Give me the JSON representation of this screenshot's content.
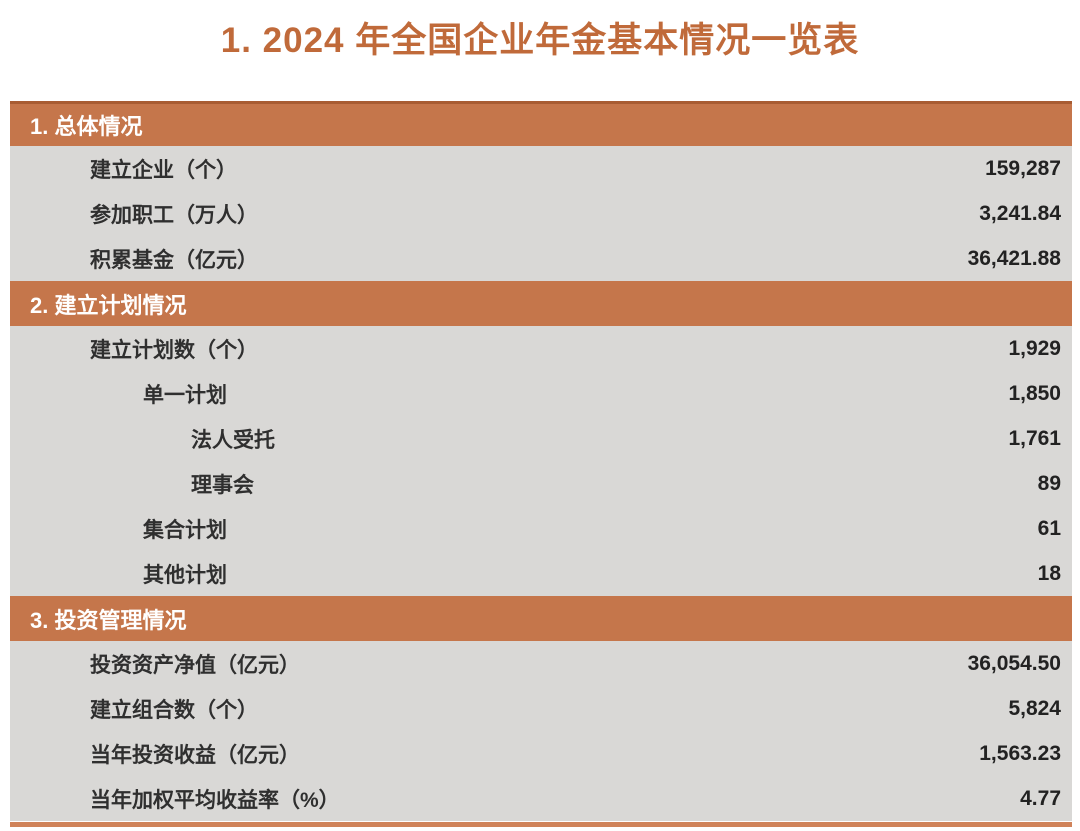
{
  "page": {
    "title": "1. 2024 年全国企业年金基本情况一览表"
  },
  "colors": {
    "title_orange": "#c06a3a",
    "section_header_bg": "#c5764b",
    "section_header_text": "#ffffff",
    "row_bg": "#d9d8d6",
    "row_text": "#2f2f2f",
    "page_bg": "#ffffff"
  },
  "chart_data": {
    "type": "table",
    "title": "1. 2024 年全国企业年金基本情况一览表",
    "layout": "two-column key/value table, section header bands in orange, data rows in gray, values right-aligned",
    "sections": [
      {
        "header": "1. 总体情况",
        "rows": [
          {
            "label": "建立企业（个）",
            "value": "159,287",
            "indent": 1
          },
          {
            "label": "参加职工（万人）",
            "value": "3,241.84",
            "indent": 1
          },
          {
            "label": "积累基金（亿元）",
            "value": "36,421.88",
            "indent": 1
          }
        ]
      },
      {
        "header": "2. 建立计划情况",
        "rows": [
          {
            "label": "建立计划数（个）",
            "value": "1,929",
            "indent": 1
          },
          {
            "label": "单一计划",
            "value": "1,850",
            "indent": 2
          },
          {
            "label": "法人受托",
            "value": "1,761",
            "indent": 3
          },
          {
            "label": "理事会",
            "value": "89",
            "indent": 3
          },
          {
            "label": "集合计划",
            "value": "61",
            "indent": 2
          },
          {
            "label": "其他计划",
            "value": "18",
            "indent": 2
          }
        ]
      },
      {
        "header": "3. 投资管理情况",
        "rows": [
          {
            "label": "投资资产净值（亿元）",
            "value": "36,054.50",
            "indent": 1
          },
          {
            "label": "建立组合数（个）",
            "value": "5,824",
            "indent": 1
          },
          {
            "label": "当年投资收益（亿元）",
            "value": "1,563.23",
            "indent": 1
          },
          {
            "label": "当年加权平均收益率（%）",
            "value": "4.77",
            "indent": 1
          }
        ]
      }
    ]
  }
}
